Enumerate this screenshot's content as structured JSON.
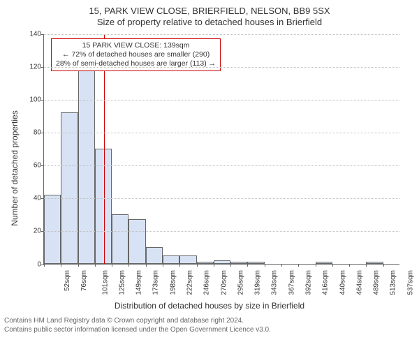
{
  "title": {
    "main": "15, PARK VIEW CLOSE, BRIERFIELD, NELSON, BB9 5SX",
    "sub": "Size of property relative to detached houses in Brierfield"
  },
  "chart": {
    "type": "histogram",
    "ylim": [
      0,
      140
    ],
    "ytick_step": 20,
    "yticks": [
      0,
      20,
      40,
      60,
      80,
      100,
      120,
      140
    ],
    "bar_color": "#d7e2f4",
    "bar_border_color": "#666666",
    "grid_color": "#bfbfbf",
    "axis_color": "#666666",
    "background_color": "#ffffff",
    "categories": [
      "52sqm",
      "76sqm",
      "101sqm",
      "125sqm",
      "149sqm",
      "173sqm",
      "198sqm",
      "222sqm",
      "246sqm",
      "270sqm",
      "295sqm",
      "319sqm",
      "343sqm",
      "367sqm",
      "392sqm",
      "416sqm",
      "440sqm",
      "464sqm",
      "489sqm",
      "513sqm",
      "537sqm"
    ],
    "values": [
      42,
      92,
      123,
      70,
      30,
      27,
      10,
      5,
      5,
      1,
      2,
      1,
      1,
      0,
      0,
      0,
      1,
      0,
      0,
      1,
      0
    ],
    "bar_width": 1.0,
    "ref_line": {
      "bin_index": 3,
      "fraction_in_bin": 0.55,
      "color": "#cc0000"
    },
    "ylabel": "Number of detached properties",
    "xlabel": "Distribution of detached houses by size in Brierfield",
    "label_fontsize": 12,
    "tick_fontsize": 10
  },
  "annotation": {
    "border_color": "#cc0000",
    "lines": [
      "15 PARK VIEW CLOSE: 139sqm",
      "← 72% of detached houses are smaller (290)",
      "28% of semi-detached houses are larger (113) →"
    ]
  },
  "footer": {
    "line1": "Contains HM Land Registry data © Crown copyright and database right 2024.",
    "line2": "Contains public sector information licensed under the Open Government Licence v3.0."
  }
}
